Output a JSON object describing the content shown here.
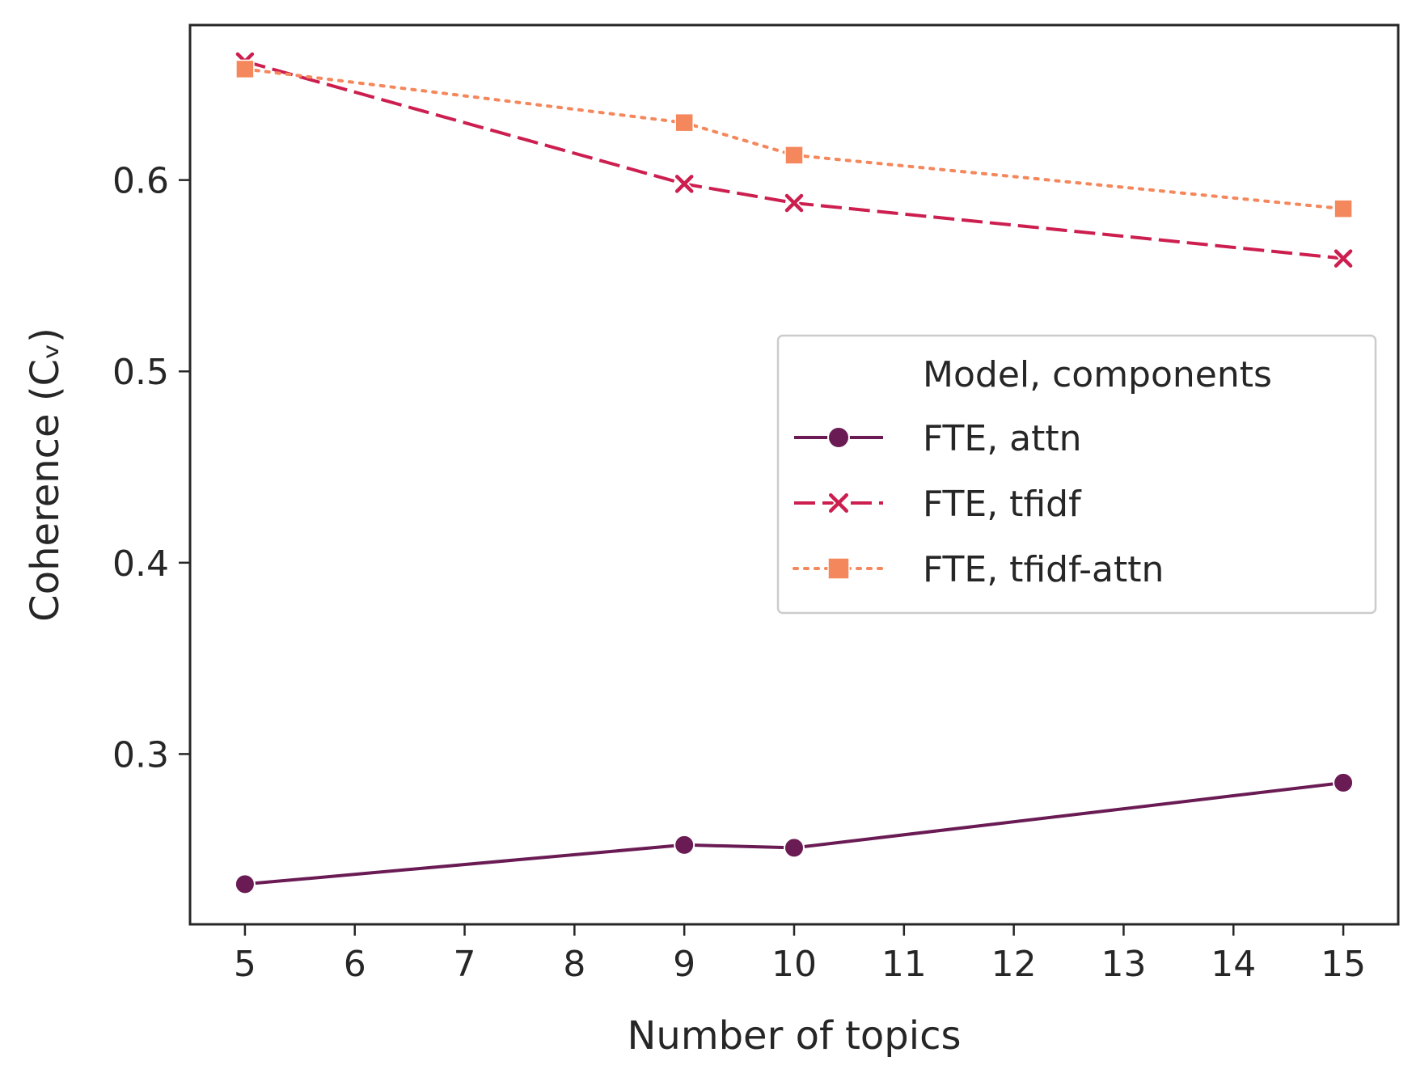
{
  "chart_data": {
    "type": "line",
    "title": "",
    "xlabel": "Number of topics",
    "ylabel": "Coherence (Cᵥ)",
    "x_ticks": [
      5,
      6,
      7,
      8,
      9,
      10,
      11,
      12,
      13,
      14,
      15
    ],
    "y_ticks": [
      0.3,
      0.4,
      0.5,
      0.6
    ],
    "y_tick_labels": [
      "0.3",
      "0.4",
      "0.5",
      "0.6"
    ],
    "xlim": [
      4.5,
      15.5
    ],
    "ylim": [
      0.211,
      0.681
    ],
    "grid": false,
    "legend": {
      "title": "Model, components",
      "placement": "center-right"
    },
    "x": [
      5,
      9,
      10,
      15
    ],
    "series": [
      {
        "name": "FTE, attn",
        "values": [
          0.232,
          0.2525,
          0.251,
          0.285
        ],
        "color": "#6a1b54",
        "line_style": "solid",
        "marker": "circle"
      },
      {
        "name": "FTE, tfidf",
        "values": [
          0.662,
          0.598,
          0.588,
          0.559
        ],
        "color": "#cc1f4f",
        "line_style": "dashed",
        "marker": "x"
      },
      {
        "name": "FTE, tfidf-attn",
        "values": [
          0.658,
          0.63,
          0.613,
          0.585
        ],
        "color": "#f4875c",
        "line_style": "dotted",
        "marker": "square"
      }
    ]
  }
}
